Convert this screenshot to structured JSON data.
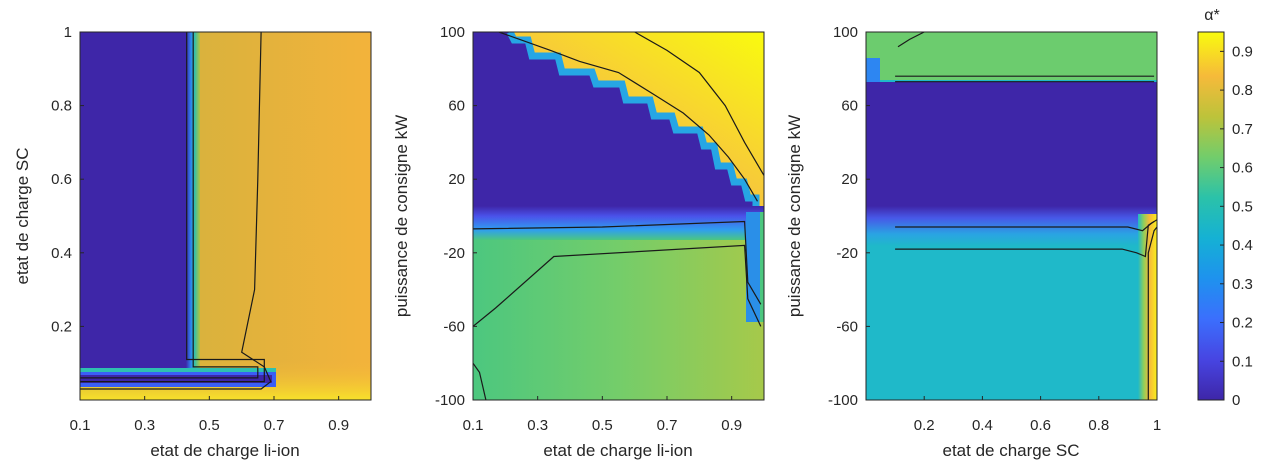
{
  "colorbar": {
    "title": "α*",
    "min": 0,
    "max": 0.95,
    "ticks": [
      "0",
      "0.1",
      "0.2",
      "0.3",
      "0.4",
      "0.5",
      "0.6",
      "0.7",
      "0.8",
      "0.9"
    ]
  },
  "chart_data": [
    {
      "type": "heatmap",
      "xlabel": "etat de charge li-ion",
      "ylabel": "etat de charge SC",
      "xlim": [
        0.1,
        1.0
      ],
      "ylim": [
        0.0,
        1.0
      ],
      "xticks": [
        "0.1",
        "0.3",
        "0.5",
        "0.7",
        "0.9"
      ],
      "yticks": [
        "0.2",
        "0.4",
        "0.6",
        "0.8",
        "1"
      ],
      "regions": [
        {
          "x": [
            0.1,
            0.44
          ],
          "y": [
            0.08,
            1.0
          ],
          "value": 0.0
        },
        {
          "x": [
            0.1,
            0.65
          ],
          "y": [
            0.0,
            0.07
          ],
          "value": 0.0
        },
        {
          "x": [
            0.47,
            0.65
          ],
          "y": [
            0.1,
            1.0
          ],
          "value": 0.68
        },
        {
          "x": [
            0.65,
            1.0
          ],
          "y": [
            0.0,
            1.0
          ],
          "value": 0.78
        }
      ],
      "contours": [
        {
          "level": 0.4,
          "points": [
            [
              0.43,
              1.0
            ],
            [
              0.43,
              0.11
            ],
            [
              0.67,
              0.11
            ],
            [
              0.67,
              0.05
            ],
            [
              0.1,
              0.05
            ]
          ]
        },
        {
          "level": 0.6,
          "points": [
            [
              0.45,
              1.0
            ],
            [
              0.45,
              0.09
            ],
            [
              0.65,
              0.09
            ],
            [
              0.65,
              0.06
            ],
            [
              0.1,
              0.06
            ]
          ]
        },
        {
          "level": 0.75,
          "points": [
            [
              0.66,
              1.0
            ],
            [
              0.65,
              0.6
            ],
            [
              0.64,
              0.3
            ],
            [
              0.6,
              0.13
            ],
            [
              0.67,
              0.09
            ],
            [
              0.69,
              0.05
            ],
            [
              0.66,
              0.03
            ],
            [
              0.1,
              0.03
            ]
          ]
        }
      ]
    },
    {
      "type": "heatmap",
      "xlabel": "etat de charge li-ion",
      "ylabel": "puissance de consigne kW",
      "xlim": [
        0.1,
        1.0
      ],
      "ylim": [
        -100,
        100
      ],
      "xticks": [
        "0.1",
        "0.3",
        "0.5",
        "0.7",
        "0.9"
      ],
      "yticks": [
        "-100",
        "-60",
        "-20",
        "20",
        "60",
        "100"
      ],
      "regions": [
        {
          "x": [
            0.1,
            0.95
          ],
          "y": [
            4,
            100
          ],
          "value": 0.0
        },
        {
          "x": [
            0.1,
            1.0
          ],
          "y": [
            -100,
            -5
          ],
          "value": 0.62
        }
      ],
      "contours": [
        {
          "level": 0.5,
          "points": [
            [
              0.18,
              100
            ],
            [
              0.34,
              90
            ],
            [
              0.43,
              84
            ],
            [
              0.55,
              78
            ],
            [
              0.66,
              66
            ],
            [
              0.75,
              56
            ],
            [
              0.83,
              44
            ],
            [
              0.89,
              32
            ],
            [
              0.94,
              20
            ],
            [
              0.98,
              8
            ]
          ]
        },
        {
          "level": 0.85,
          "points": [
            [
              0.6,
              100
            ],
            [
              0.7,
              90
            ],
            [
              0.8,
              78
            ],
            [
              0.88,
              60
            ],
            [
              0.94,
              40
            ],
            [
              1.0,
              22
            ]
          ]
        },
        {
          "level": 0.5,
          "points": [
            [
              0.1,
              -7
            ],
            [
              0.5,
              -6
            ],
            [
              0.94,
              -3
            ],
            [
              0.95,
              -36
            ],
            [
              0.99,
              -48
            ]
          ]
        },
        {
          "level": 0.62,
          "points": [
            [
              0.1,
              -60
            ],
            [
              0.17,
              -50
            ],
            [
              0.35,
              -22
            ],
            [
              0.94,
              -16
            ],
            [
              0.95,
              -45
            ],
            [
              0.99,
              -60
            ]
          ]
        },
        {
          "level": 0.62,
          "points": [
            [
              0.1,
              -80
            ],
            [
              0.12,
              -85
            ],
            [
              0.14,
              -100
            ]
          ]
        }
      ]
    },
    {
      "type": "heatmap",
      "xlabel": "etat de charge SC",
      "ylabel": "puissance de consigne kW",
      "xlim": [
        0.0,
        1.0
      ],
      "ylim": [
        -100,
        100
      ],
      "xticks": [
        "0.2",
        "0.4",
        "0.6",
        "0.8",
        "1"
      ],
      "yticks": [
        "-100",
        "-60",
        "-20",
        "20",
        "60",
        "100"
      ],
      "regions": [
        {
          "x": [
            0.0,
            1.0
          ],
          "y": [
            76,
            100
          ],
          "value": 0.58
        },
        {
          "x": [
            0.0,
            1.0
          ],
          "y": [
            2,
            72
          ],
          "value": 0.0
        },
        {
          "x": [
            0.0,
            1.0
          ],
          "y": [
            -100,
            -10
          ],
          "value": 0.45
        },
        {
          "x": [
            0.96,
            1.0
          ],
          "y": [
            -100,
            -5
          ],
          "value": 0.88
        }
      ],
      "contours": [
        {
          "level": 0.55,
          "points": [
            [
              0.1,
              76
            ],
            [
              0.99,
              76
            ]
          ]
        },
        {
          "level": 0.5,
          "points": [
            [
              0.1,
              73
            ],
            [
              0.99,
              73
            ]
          ]
        },
        {
          "level": 0.4,
          "points": [
            [
              0.1,
              -6
            ],
            [
              0.9,
              -6
            ],
            [
              0.95,
              -8
            ],
            [
              0.98,
              -4
            ],
            [
              1.0,
              -2
            ]
          ]
        },
        {
          "level": 0.45,
          "points": [
            [
              0.1,
              -18
            ],
            [
              0.88,
              -18
            ],
            [
              0.93,
              -20
            ],
            [
              0.96,
              -22
            ],
            [
              0.97,
              -5
            ],
            [
              0.99,
              -3
            ]
          ]
        },
        {
          "level": 0.6,
          "points": [
            [
              0.97,
              -100
            ],
            [
              0.97,
              -20
            ],
            [
              0.99,
              -8
            ],
            [
              1.0,
              -6
            ]
          ]
        },
        {
          "level": 0.55,
          "points": [
            [
              0.11,
              92
            ],
            [
              0.15,
              96
            ],
            [
              0.2,
              100
            ]
          ]
        }
      ]
    }
  ]
}
